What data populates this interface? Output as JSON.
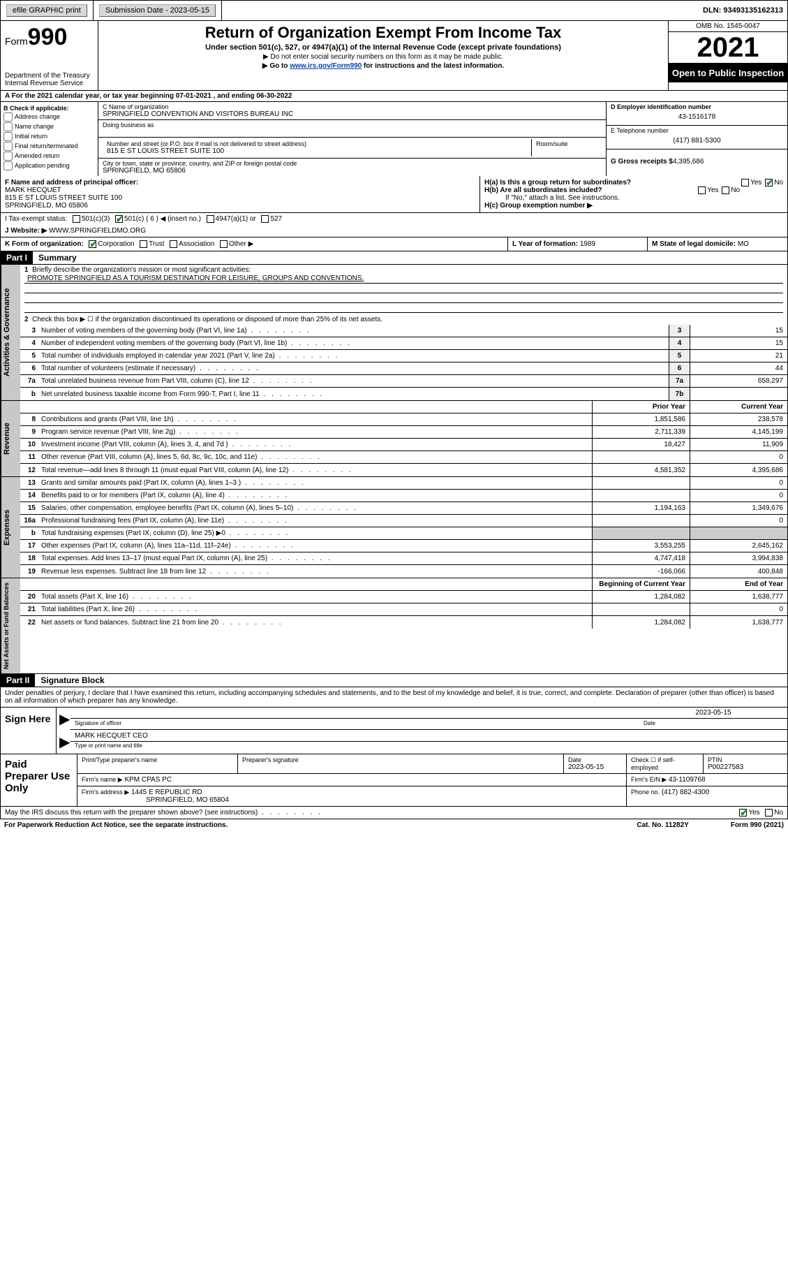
{
  "topbar": {
    "efile": "efile GRAPHIC print",
    "sub_label": "Submission Date - 2023-05-15",
    "dln": "DLN: 93493135162313"
  },
  "header": {
    "form_prefix": "Form",
    "form_num": "990",
    "dept": "Department of the Treasury",
    "irs": "Internal Revenue Service",
    "title": "Return of Organization Exempt From Income Tax",
    "subtitle": "Under section 501(c), 527, or 4947(a)(1) of the Internal Revenue Code (except private foundations)",
    "note1": "▶ Do not enter social security numbers on this form as it may be made public.",
    "note2_pre": "▶ Go to ",
    "note2_link": "www.irs.gov/Form990",
    "note2_post": " for instructions and the latest information.",
    "omb": "OMB No. 1545-0047",
    "year": "2021",
    "inspect": "Open to Public Inspection"
  },
  "row_a": "A For the 2021 calendar year, or tax year beginning 07-01-2021   , and ending 06-30-2022",
  "col_b": {
    "title": "B Check if applicable:",
    "items": [
      "Address change",
      "Name change",
      "Initial return",
      "Final return/terminated",
      "Amended return",
      "Application pending"
    ]
  },
  "col_c": {
    "name_lbl": "C Name of organization",
    "name": "SPRINGFIELD CONVENTION AND VISITORS BUREAU INC",
    "dba_lbl": "Doing business as",
    "addr_lbl": "Number and street (or P.O. box if mail is not delivered to street address)",
    "room_lbl": "Room/suite",
    "addr": "815 E ST LOUIS STREET SUITE 100",
    "city_lbl": "City or town, state or province, country, and ZIP or foreign postal code",
    "city": "SPRINGFIELD, MO  65806"
  },
  "col_d": {
    "ein_lbl": "D Employer identification number",
    "ein": "43-1516178",
    "tel_lbl": "E Telephone number",
    "tel": "(417) 881-5300",
    "gross_lbl": "G Gross receipts $",
    "gross": "4,395,686"
  },
  "row_f": {
    "lbl": "F Name and address of principal officer:",
    "name": "MARK HECQUET",
    "addr1": "815 E ST LOUIS STREET SUITE 100",
    "addr2": "SPRINGFIELD, MO  65806"
  },
  "row_h": {
    "ha": "H(a)  Is this a group return for subordinates?",
    "hb": "H(b)  Are all subordinates included?",
    "hb_note": "If \"No,\" attach a list. See instructions.",
    "hc": "H(c)  Group exemption number ▶"
  },
  "row_i": {
    "lbl": "I   Tax-exempt status:",
    "opts": [
      "501(c)(3)",
      "501(c) ( 6 ) ◀ (insert no.)",
      "4947(a)(1) or",
      "527"
    ]
  },
  "row_j": {
    "lbl": "J   Website: ▶",
    "val": "WWW.SPRINGFIELDMO.ORG"
  },
  "row_k": {
    "lbl": "K Form of organization:",
    "opts": [
      "Corporation",
      "Trust",
      "Association",
      "Other ▶"
    ],
    "l_lbl": "L Year of formation:",
    "l_val": "1989",
    "m_lbl": "M State of legal domicile:",
    "m_val": "MO"
  },
  "part1": {
    "hdr": "Part I",
    "title": "Summary"
  },
  "section_labels": {
    "gov": "Activities & Governance",
    "rev": "Revenue",
    "exp": "Expenses",
    "net": "Net Assets or Fund Balances"
  },
  "line1": {
    "num": "1",
    "txt": "Briefly describe the organization's mission or most significant activities:",
    "mission": "PROMOTE SPRINGFIELD AS A TOURISM DESTINATION FOR LEISURE, GROUPS AND CONVENTIONS."
  },
  "line2": {
    "num": "2",
    "txt": "Check this box ▶ ☐  if the organization discontinued its operations or disposed of more than 25% of its net assets."
  },
  "gov_lines": [
    {
      "num": "3",
      "txt": "Number of voting members of the governing body (Part VI, line 1a)",
      "box": "3",
      "val": "15"
    },
    {
      "num": "4",
      "txt": "Number of independent voting members of the governing body (Part VI, line 1b)",
      "box": "4",
      "val": "15"
    },
    {
      "num": "5",
      "txt": "Total number of individuals employed in calendar year 2021 (Part V, line 2a)",
      "box": "5",
      "val": "21"
    },
    {
      "num": "6",
      "txt": "Total number of volunteers (estimate if necessary)",
      "box": "6",
      "val": "44"
    },
    {
      "num": "7a",
      "txt": "Total unrelated business revenue from Part VIII, column (C), line 12",
      "box": "7a",
      "val": "658,297"
    },
    {
      "num": "b",
      "txt": "Net unrelated business taxable income from Form 990-T, Part I, line 11",
      "box": "7b",
      "val": ""
    }
  ],
  "two_col_hdr": {
    "prior": "Prior Year",
    "current": "Current Year",
    "boy": "Beginning of Current Year",
    "eoy": "End of Year"
  },
  "rev_lines": [
    {
      "num": "8",
      "txt": "Contributions and grants (Part VIII, line 1h)",
      "prior": "1,851,586",
      "curr": "238,578"
    },
    {
      "num": "9",
      "txt": "Program service revenue (Part VIII, line 2g)",
      "prior": "2,711,339",
      "curr": "4,145,199"
    },
    {
      "num": "10",
      "txt": "Investment income (Part VIII, column (A), lines 3, 4, and 7d )",
      "prior": "18,427",
      "curr": "11,909"
    },
    {
      "num": "11",
      "txt": "Other revenue (Part VIII, column (A), lines 5, 6d, 8c, 9c, 10c, and 11e)",
      "prior": "",
      "curr": "0"
    },
    {
      "num": "12",
      "txt": "Total revenue—add lines 8 through 11 (must equal Part VIII, column (A), line 12)",
      "prior": "4,581,352",
      "curr": "4,395,686"
    }
  ],
  "exp_lines": [
    {
      "num": "13",
      "txt": "Grants and similar amounts paid (Part IX, column (A), lines 1–3 )",
      "prior": "",
      "curr": "0"
    },
    {
      "num": "14",
      "txt": "Benefits paid to or for members (Part IX, column (A), line 4)",
      "prior": "",
      "curr": "0"
    },
    {
      "num": "15",
      "txt": "Salaries, other compensation, employee benefits (Part IX, column (A), lines 5–10)",
      "prior": "1,194,163",
      "curr": "1,349,676"
    },
    {
      "num": "16a",
      "txt": "Professional fundraising fees (Part IX, column (A), line 11e)",
      "prior": "",
      "curr": "0"
    },
    {
      "num": "b",
      "txt": "Total fundraising expenses (Part IX, column (D), line 25) ▶0",
      "prior": "shade",
      "curr": "shade"
    },
    {
      "num": "17",
      "txt": "Other expenses (Part IX, column (A), lines 11a–11d, 11f–24e)",
      "prior": "3,553,255",
      "curr": "2,645,162"
    },
    {
      "num": "18",
      "txt": "Total expenses. Add lines 13–17 (must equal Part IX, column (A), line 25)",
      "prior": "4,747,418",
      "curr": "3,994,838"
    },
    {
      "num": "19",
      "txt": "Revenue less expenses. Subtract line 18 from line 12",
      "prior": "-166,066",
      "curr": "400,848"
    }
  ],
  "net_lines": [
    {
      "num": "20",
      "txt": "Total assets (Part X, line 16)",
      "prior": "1,284,082",
      "curr": "1,638,777"
    },
    {
      "num": "21",
      "txt": "Total liabilities (Part X, line 26)",
      "prior": "",
      "curr": "0"
    },
    {
      "num": "22",
      "txt": "Net assets or fund balances. Subtract line 21 from line 20",
      "prior": "1,284,082",
      "curr": "1,638,777"
    }
  ],
  "part2": {
    "hdr": "Part II",
    "title": "Signature Block"
  },
  "penalty": "Under penalties of perjury, I declare that I have examined this return, including accompanying schedules and statements, and to the best of my knowledge and belief, it is true, correct, and complete. Declaration of preparer (other than officer) is based on all information of which preparer has any knowledge.",
  "sign": {
    "lbl": "Sign Here",
    "sig_lbl": "Signature of officer",
    "date_lbl": "Date",
    "date": "2023-05-15",
    "name": "MARK HECQUET CEO",
    "name_lbl": "Type or print name and title"
  },
  "prep": {
    "lbl": "Paid Preparer Use Only",
    "r1": {
      "c1_lbl": "Print/Type preparer's name",
      "c2_lbl": "Preparer's signature",
      "c3_lbl": "Date",
      "c3": "2023-05-15",
      "c4_lbl": "Check ☐ if self-employed",
      "c5_lbl": "PTIN",
      "c5": "P00227583"
    },
    "r2": {
      "c1_lbl": "Firm's name    ▶",
      "c1": "KPM CPAS PC",
      "c2_lbl": "Firm's EIN ▶",
      "c2": "43-1109768"
    },
    "r3": {
      "c1_lbl": "Firm's address ▶",
      "c1": "1445 E REPUBLIC RD",
      "c1b": "SPRINGFIELD, MO  65804",
      "c2_lbl": "Phone no.",
      "c2": "(417) 882-4300"
    }
  },
  "discuss": "May the IRS discuss this return with the preparer shown above? (see instructions)",
  "footer": {
    "left": "For Paperwork Reduction Act Notice, see the separate instructions.",
    "mid": "Cat. No. 11282Y",
    "right": "Form 990 (2021)"
  }
}
